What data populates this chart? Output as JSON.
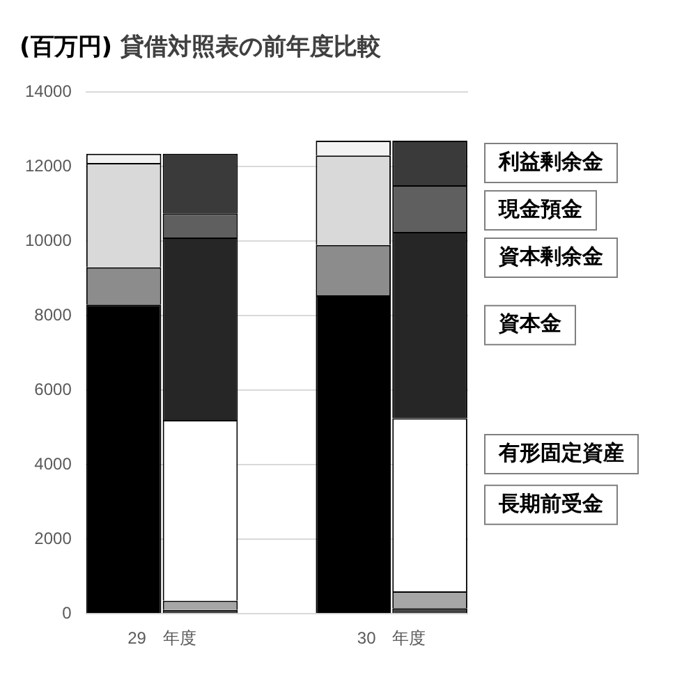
{
  "chart_data": {
    "type": "bar",
    "title": "貸借対照表の前年度比較",
    "ylabel": "(百万円)",
    "categories": [
      "29　年度",
      null,
      null,
      "30　年度",
      null
    ],
    "stacked": true,
    "ylim": [
      0,
      14000
    ],
    "yticks": [
      0,
      2000,
      4000,
      6000,
      8000,
      10000,
      12000,
      14000
    ],
    "grid": "y",
    "legend": false,
    "series": [
      {
        "name": "有形固定資産",
        "color": "#000000",
        "values": [
          8300,
          null,
          null,
          8550,
          null
        ]
      },
      {
        "color": "#8c8c8c",
        "values": [
          1000,
          null,
          null,
          1350,
          null
        ]
      },
      {
        "name": "現金預金",
        "color": "#d9d9d9",
        "values": [
          2800,
          null,
          null,
          2400,
          null
        ]
      },
      {
        "color": "#f2f2f2",
        "values": [
          250,
          null,
          null,
          400,
          null
        ]
      },
      {
        "color": "#404040",
        "values": [
          null,
          100,
          null,
          null,
          150
        ]
      },
      {
        "color": "#a6a6a6",
        "values": [
          null,
          250,
          null,
          null,
          450
        ]
      },
      {
        "name": "長期前受金",
        "color": "#ffffff",
        "values": [
          null,
          4850,
          null,
          null,
          4650
        ]
      },
      {
        "name": "資本金",
        "color": "#262626",
        "values": [
          null,
          4900,
          null,
          null,
          5000
        ]
      },
      {
        "name": "資本剰余金",
        "color": "#5f5f5f",
        "values": [
          null,
          650,
          null,
          null,
          1250
        ]
      },
      {
        "name": "利益剰余金",
        "color": "#3a3a3a",
        "values": [
          null,
          1600,
          null,
          null,
          1200
        ]
      }
    ]
  }
}
